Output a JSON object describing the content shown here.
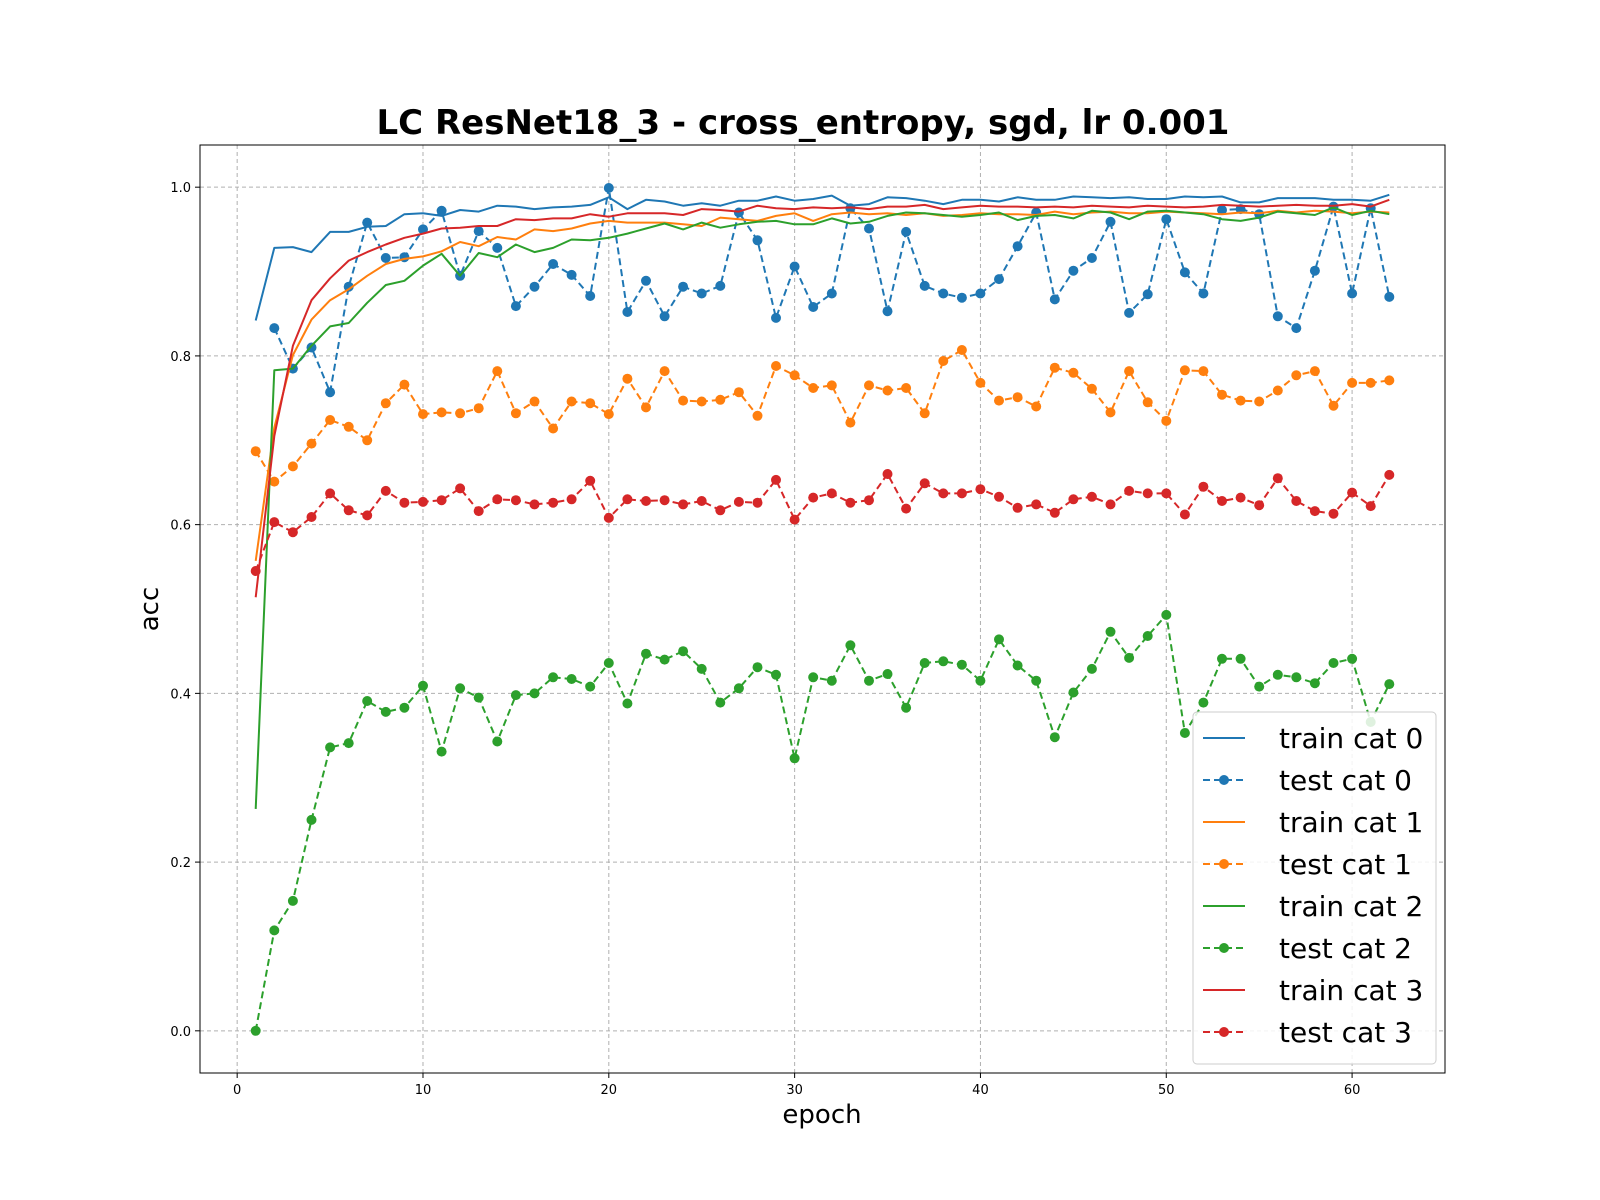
{
  "chart_data": {
    "type": "line",
    "title": "LC ResNet18_3 - cross_entropy, sgd, lr 0.001",
    "xlabel": "epoch",
    "ylabel": "acc",
    "xlim": [
      -2,
      65
    ],
    "ylim": [
      -0.05,
      1.05
    ],
    "xticks": [
      0,
      10,
      20,
      30,
      40,
      50,
      60
    ],
    "yticks": [
      0.0,
      0.2,
      0.4,
      0.6,
      0.8,
      1.0
    ],
    "xtick_labels": [
      "0",
      "10",
      "20",
      "30",
      "40",
      "50",
      "60"
    ],
    "ytick_labels": [
      "0.0",
      "0.2",
      "0.4",
      "0.6",
      "0.8",
      "1.0"
    ],
    "grid": true,
    "legend_position": "lower-right",
    "x": [
      1,
      2,
      3,
      4,
      5,
      6,
      7,
      8,
      9,
      10,
      11,
      12,
      13,
      14,
      15,
      16,
      17,
      18,
      19,
      20,
      21,
      22,
      23,
      24,
      25,
      26,
      27,
      28,
      29,
      30,
      31,
      32,
      33,
      34,
      35,
      36,
      37,
      38,
      39,
      40,
      41,
      42,
      43,
      44,
      45,
      46,
      47,
      48,
      49,
      50,
      51,
      52,
      53,
      54,
      55,
      56,
      57,
      58,
      59,
      60,
      61,
      62
    ],
    "series": [
      {
        "name": "train cat 0",
        "color": "#1f77b4",
        "style": "solid",
        "marker": false,
        "values": [
          0.842,
          0.928,
          0.929,
          0.923,
          0.947,
          0.947,
          0.953,
          0.954,
          0.968,
          0.969,
          0.966,
          0.973,
          0.971,
          0.978,
          0.977,
          0.974,
          0.976,
          0.977,
          0.979,
          0.988,
          0.974,
          0.985,
          0.983,
          0.978,
          0.981,
          0.978,
          0.984,
          0.984,
          0.989,
          0.984,
          0.986,
          0.99,
          0.978,
          0.98,
          0.988,
          0.987,
          0.984,
          0.98,
          0.985,
          0.985,
          0.983,
          0.988,
          0.985,
          0.985,
          0.989,
          0.988,
          0.987,
          0.988,
          0.986,
          0.986,
          0.989,
          0.988,
          0.989,
          0.982,
          0.982,
          0.987,
          0.987,
          0.987,
          0.985,
          0.985,
          0.984,
          0.991
        ]
      },
      {
        "name": "test cat 0",
        "color": "#1f77b4",
        "style": "dashed",
        "marker": true,
        "values": [
          null,
          0.833,
          0.785,
          0.81,
          0.757,
          0.882,
          0.958,
          0.916,
          0.917,
          0.95,
          0.972,
          0.895,
          0.948,
          0.928,
          0.859,
          0.882,
          0.909,
          0.896,
          0.871,
          0.999,
          0.852,
          0.889,
          0.847,
          0.882,
          0.874,
          0.883,
          0.97,
          0.937,
          0.845,
          0.906,
          0.858,
          0.874,
          0.975,
          0.951,
          0.853,
          0.947,
          0.883,
          0.874,
          0.869,
          0.874,
          0.891,
          0.93,
          0.97,
          0.867,
          0.901,
          0.916,
          0.959,
          0.851,
          0.873,
          0.962,
          0.899,
          0.874,
          0.973,
          0.974,
          0.968,
          0.847,
          0.833,
          0.901,
          0.977,
          0.874,
          0.975,
          0.87
        ]
      },
      {
        "name": "train cat 1",
        "color": "#ff7f0e",
        "style": "solid",
        "marker": false,
        "values": [
          0.557,
          0.715,
          0.801,
          0.843,
          0.866,
          0.879,
          0.895,
          0.909,
          0.915,
          0.918,
          0.924,
          0.935,
          0.93,
          0.941,
          0.938,
          0.95,
          0.948,
          0.951,
          0.957,
          0.96,
          0.958,
          0.958,
          0.958,
          0.956,
          0.954,
          0.964,
          0.962,
          0.96,
          0.966,
          0.969,
          0.96,
          0.968,
          0.97,
          0.968,
          0.969,
          0.967,
          0.969,
          0.966,
          0.967,
          0.969,
          0.968,
          0.968,
          0.967,
          0.971,
          0.968,
          0.97,
          0.971,
          0.969,
          0.969,
          0.971,
          0.97,
          0.969,
          0.968,
          0.97,
          0.969,
          0.972,
          0.97,
          0.972,
          0.971,
          0.969,
          0.971,
          0.97
        ]
      },
      {
        "name": "test cat 1",
        "color": "#ff7f0e",
        "style": "dashed",
        "marker": true,
        "values": [
          0.687,
          0.651,
          0.669,
          0.696,
          0.724,
          0.716,
          0.7,
          0.744,
          0.766,
          0.731,
          0.733,
          0.732,
          0.738,
          0.782,
          0.732,
          0.746,
          0.714,
          0.746,
          0.744,
          0.731,
          0.773,
          0.739,
          0.782,
          0.747,
          0.746,
          0.748,
          0.757,
          0.729,
          0.788,
          0.777,
          0.762,
          0.765,
          0.721,
          0.765,
          0.759,
          0.762,
          0.732,
          0.794,
          0.807,
          0.768,
          0.747,
          0.751,
          0.74,
          0.786,
          0.78,
          0.761,
          0.733,
          0.782,
          0.745,
          0.723,
          0.783,
          0.782,
          0.754,
          0.747,
          0.746,
          0.759,
          0.777,
          0.782,
          0.741,
          0.768,
          0.768,
          0.771
        ]
      },
      {
        "name": "train cat 2",
        "color": "#2ca02c",
        "style": "solid",
        "marker": false,
        "values": [
          0.263,
          0.783,
          0.785,
          0.812,
          0.835,
          0.839,
          0.863,
          0.884,
          0.889,
          0.907,
          0.921,
          0.895,
          0.922,
          0.917,
          0.932,
          0.923,
          0.928,
          0.938,
          0.937,
          0.94,
          0.945,
          0.951,
          0.957,
          0.95,
          0.958,
          0.952,
          0.956,
          0.959,
          0.96,
          0.956,
          0.956,
          0.963,
          0.957,
          0.959,
          0.966,
          0.97,
          0.969,
          0.967,
          0.965,
          0.967,
          0.97,
          0.961,
          0.966,
          0.967,
          0.963,
          0.972,
          0.97,
          0.962,
          0.971,
          0.972,
          0.97,
          0.968,
          0.962,
          0.96,
          0.964,
          0.971,
          0.969,
          0.967,
          0.976,
          0.967,
          0.972,
          0.968
        ]
      },
      {
        "name": "test cat 2",
        "color": "#2ca02c",
        "style": "dashed",
        "marker": true,
        "values": [
          0.0,
          0.119,
          0.154,
          0.25,
          0.336,
          0.341,
          0.391,
          0.378,
          0.383,
          0.409,
          0.331,
          0.406,
          0.395,
          0.343,
          0.398,
          0.4,
          0.419,
          0.417,
          0.408,
          0.436,
          0.388,
          0.447,
          0.44,
          0.45,
          0.429,
          0.389,
          0.406,
          0.431,
          0.422,
          0.323,
          0.419,
          0.415,
          0.457,
          0.415,
          0.423,
          0.383,
          0.436,
          0.438,
          0.434,
          0.415,
          0.464,
          0.433,
          0.415,
          0.348,
          0.401,
          0.429,
          0.473,
          0.442,
          0.468,
          0.493,
          0.353,
          0.389,
          0.441,
          0.441,
          0.408,
          0.422,
          0.419,
          0.412,
          0.436,
          0.441,
          0.366,
          0.411
        ]
      },
      {
        "name": "train cat 3",
        "color": "#d62728",
        "style": "solid",
        "marker": false,
        "values": [
          0.514,
          0.705,
          0.812,
          0.866,
          0.892,
          0.913,
          0.923,
          0.932,
          0.94,
          0.945,
          0.951,
          0.952,
          0.954,
          0.954,
          0.962,
          0.961,
          0.963,
          0.963,
          0.968,
          0.965,
          0.969,
          0.969,
          0.969,
          0.967,
          0.974,
          0.973,
          0.971,
          0.978,
          0.975,
          0.974,
          0.976,
          0.975,
          0.976,
          0.974,
          0.977,
          0.977,
          0.979,
          0.974,
          0.976,
          0.978,
          0.977,
          0.977,
          0.976,
          0.977,
          0.976,
          0.978,
          0.977,
          0.976,
          0.978,
          0.977,
          0.976,
          0.977,
          0.979,
          0.978,
          0.977,
          0.978,
          0.979,
          0.978,
          0.978,
          0.98,
          0.977,
          0.985
        ]
      },
      {
        "name": "test cat 3",
        "color": "#d62728",
        "style": "dashed",
        "marker": true,
        "values": [
          0.545,
          0.603,
          0.591,
          0.609,
          0.637,
          0.617,
          0.611,
          0.64,
          0.626,
          0.627,
          0.629,
          0.643,
          0.616,
          0.63,
          0.629,
          0.624,
          0.626,
          0.63,
          0.652,
          0.608,
          0.63,
          0.628,
          0.629,
          0.624,
          0.628,
          0.617,
          0.627,
          0.626,
          0.653,
          0.606,
          0.632,
          0.637,
          0.626,
          0.629,
          0.66,
          0.619,
          0.649,
          0.637,
          0.637,
          0.642,
          0.633,
          0.62,
          0.624,
          0.614,
          0.63,
          0.633,
          0.624,
          0.64,
          0.637,
          0.637,
          0.612,
          0.645,
          0.628,
          0.632,
          0.623,
          0.655,
          0.628,
          0.616,
          0.613,
          0.638,
          0.622,
          0.659
        ]
      }
    ]
  }
}
